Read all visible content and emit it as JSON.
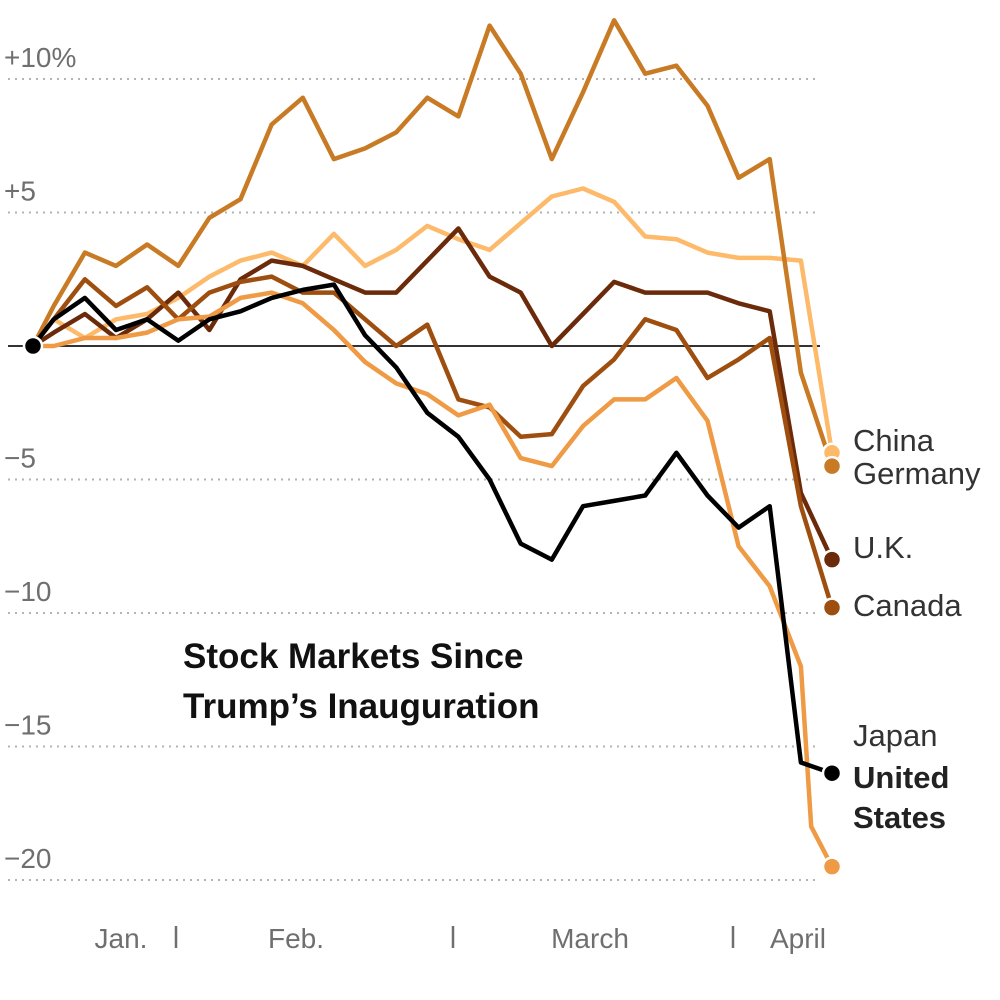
{
  "chart_data": {
    "type": "line",
    "title": "Stock Markets Since Trump’s Inauguration",
    "title_lines": [
      "Stock Markets Since",
      "Trump’s Inauguration"
    ],
    "xlabel": "",
    "ylabel": "",
    "x_tick_labels": [
      "Jan.",
      "Feb.",
      "March",
      "April"
    ],
    "x_domain": [
      0,
      77
    ],
    "y_ticks": [
      10,
      5,
      0,
      -5,
      -10,
      -15,
      -20
    ],
    "y_tick_labels": [
      "+10%",
      "+5",
      "",
      "−5",
      "−10",
      "−15",
      "−20"
    ],
    "ylim": [
      -20.5,
      12.5
    ],
    "grid": true,
    "legend": "direct labels at line ends",
    "series": [
      {
        "name": "China",
        "color": "#fdba6b",
        "x": [
          0,
          2,
          5,
          8,
          11,
          14,
          17,
          20,
          23,
          26,
          29,
          32,
          35,
          38,
          41,
          44,
          47,
          50,
          53,
          56,
          59,
          62,
          65,
          68,
          71,
          74,
          77
        ],
        "values": [
          0,
          1.0,
          0.3,
          1.0,
          1.2,
          1.8,
          2.6,
          3.2,
          3.5,
          3.0,
          4.2,
          3.0,
          3.6,
          4.5,
          4.0,
          3.6,
          4.6,
          5.6,
          5.9,
          5.4,
          4.1,
          4.0,
          3.5,
          3.3,
          3.3,
          3.2,
          -4.0
        ]
      },
      {
        "name": "Germany",
        "color": "#c87b24",
        "x": [
          0,
          2,
          5,
          8,
          11,
          14,
          17,
          20,
          23,
          26,
          29,
          32,
          35,
          38,
          41,
          44,
          47,
          50,
          53,
          56,
          59,
          62,
          65,
          68,
          71,
          74,
          77
        ],
        "values": [
          0,
          1.5,
          3.5,
          3.0,
          3.8,
          3.0,
          4.8,
          5.5,
          8.3,
          9.3,
          7.0,
          7.4,
          8.0,
          9.3,
          8.6,
          12.0,
          10.2,
          7.0,
          9.5,
          12.2,
          10.2,
          10.5,
          9.0,
          6.3,
          7.0,
          -1.0,
          -4.5
        ]
      },
      {
        "name": "U.K.",
        "color": "#6b2b0b",
        "x": [
          0,
          2,
          5,
          8,
          11,
          14,
          17,
          20,
          23,
          26,
          29,
          32,
          35,
          38,
          41,
          44,
          47,
          50,
          53,
          56,
          59,
          62,
          65,
          68,
          71,
          74,
          77
        ],
        "values": [
          0,
          0.5,
          1.2,
          0.3,
          1.0,
          2.0,
          0.6,
          2.5,
          3.2,
          3.0,
          2.5,
          2.0,
          2.0,
          3.2,
          4.4,
          2.6,
          2.0,
          0.0,
          1.2,
          2.4,
          2.0,
          2.0,
          2.0,
          1.6,
          1.3,
          -5.5,
          -8.0
        ]
      },
      {
        "name": "Canada",
        "color": "#9e4f0f",
        "x": [
          0,
          2,
          5,
          8,
          11,
          14,
          17,
          20,
          23,
          26,
          29,
          32,
          35,
          38,
          41,
          44,
          47,
          50,
          53,
          56,
          59,
          62,
          65,
          68,
          71,
          74,
          77
        ],
        "values": [
          0,
          1.0,
          2.5,
          1.5,
          2.2,
          1.0,
          2.0,
          2.4,
          2.6,
          2.0,
          2.0,
          1.0,
          0.0,
          0.8,
          -2.0,
          -2.3,
          -3.4,
          -3.3,
          -1.5,
          -0.5,
          1.0,
          0.6,
          -1.2,
          -0.5,
          0.3,
          -6.0,
          -9.8
        ]
      },
      {
        "name": "Japan",
        "color": "#ef9a45",
        "x": [
          0,
          2,
          5,
          8,
          11,
          14,
          17,
          20,
          23,
          26,
          29,
          32,
          35,
          38,
          41,
          44,
          47,
          50,
          53,
          56,
          59,
          62,
          65,
          68,
          71,
          74,
          75,
          77
        ],
        "values": [
          0,
          0.0,
          0.3,
          0.3,
          0.5,
          1.0,
          1.1,
          1.8,
          2.0,
          1.6,
          0.6,
          -0.6,
          -1.4,
          -1.8,
          -2.6,
          -2.2,
          -4.2,
          -4.5,
          -3.0,
          -2.0,
          -2.0,
          -1.2,
          -2.8,
          -7.5,
          -9.0,
          -12.0,
          -18.0,
          -19.5
        ]
      },
      {
        "name": "United States",
        "color": "#000000",
        "x": [
          0,
          2,
          5,
          8,
          11,
          14,
          17,
          20,
          23,
          26,
          29,
          32,
          35,
          38,
          41,
          44,
          47,
          50,
          53,
          56,
          59,
          62,
          65,
          68,
          71,
          74,
          77
        ],
        "values": [
          0,
          1.0,
          1.8,
          0.6,
          1.0,
          0.2,
          1.0,
          1.3,
          1.8,
          2.1,
          2.3,
          0.4,
          -0.8,
          -2.5,
          -3.4,
          -5.0,
          -7.4,
          -8.0,
          -6.0,
          -5.8,
          -5.6,
          -4.0,
          -5.6,
          -6.8,
          -6.0,
          -15.6,
          -16.0
        ]
      }
    ]
  },
  "end_labels": {
    "china": "China",
    "germany": "Germany",
    "uk": "U.K.",
    "canada": "Canada",
    "japan": "Japan",
    "us_line1": "United",
    "us_line2": "States"
  }
}
